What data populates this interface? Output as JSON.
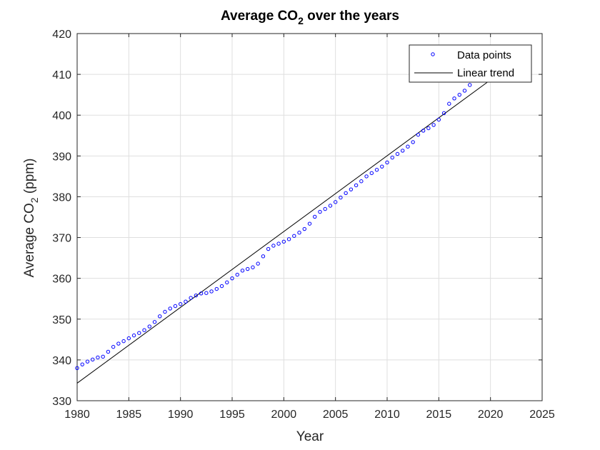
{
  "chart_data": {
    "type": "scatter",
    "title_main": "Average CO",
    "title_sub": "2",
    "title_rest": " over the years",
    "xlabel": "Year",
    "ylabel_main": "Average CO",
    "ylabel_sub": "2",
    "ylabel_rest": " (ppm)",
    "xlim": [
      1980,
      2025
    ],
    "ylim": [
      330,
      420
    ],
    "xticks": [
      1980,
      1985,
      1990,
      1995,
      2000,
      2005,
      2010,
      2015,
      2020,
      2025
    ],
    "yticks": [
      330,
      340,
      350,
      360,
      370,
      380,
      390,
      400,
      410,
      420
    ],
    "grid": true,
    "legend_position": "top-right",
    "series": [
      {
        "name": "Data points",
        "marker": "circle",
        "color": "#0000ff",
        "x": [
          1980.0,
          1980.5,
          1981.0,
          1981.5,
          1982.0,
          1982.5,
          1983.0,
          1983.5,
          1984.0,
          1984.5,
          1985.0,
          1985.5,
          1986.0,
          1986.5,
          1987.0,
          1987.5,
          1988.0,
          1988.5,
          1989.0,
          1989.5,
          1990.0,
          1990.5,
          1991.0,
          1991.5,
          1992.0,
          1992.5,
          1993.0,
          1993.5,
          1994.0,
          1994.5,
          1995.0,
          1995.5,
          1996.0,
          1996.5,
          1997.0,
          1997.5,
          1998.0,
          1998.5,
          1999.0,
          1999.5,
          2000.0,
          2000.5,
          2001.0,
          2001.5,
          2002.0,
          2002.5,
          2003.0,
          2003.5,
          2004.0,
          2004.5,
          2005.0,
          2005.5,
          2006.0,
          2006.5,
          2007.0,
          2007.5,
          2008.0,
          2008.5,
          2009.0,
          2009.5,
          2010.0,
          2010.5,
          2011.0,
          2011.5,
          2012.0,
          2012.5,
          2013.0,
          2013.5,
          2014.0,
          2014.5,
          2015.0,
          2015.5,
          2016.0,
          2016.5,
          2017.0,
          2017.5,
          2018.0,
          2018.5,
          2019.0
        ],
        "y": [
          338.0,
          338.9,
          339.6,
          340.1,
          340.6,
          340.8,
          342.0,
          343.2,
          344.0,
          344.6,
          345.3,
          346.0,
          346.6,
          347.3,
          348.2,
          349.3,
          350.7,
          351.8,
          352.6,
          353.2,
          353.7,
          354.3,
          355.2,
          355.8,
          356.3,
          356.4,
          356.8,
          357.4,
          358.1,
          359.0,
          360.0,
          360.9,
          361.9,
          362.3,
          362.7,
          363.6,
          365.4,
          367.2,
          368.0,
          368.5,
          369.0,
          369.6,
          370.4,
          371.2,
          372.1,
          373.4,
          375.1,
          376.3,
          377.0,
          377.8,
          378.7,
          379.8,
          380.9,
          381.8,
          382.8,
          383.8,
          385.0,
          385.8,
          386.6,
          387.4,
          388.4,
          389.6,
          390.5,
          391.3,
          392.3,
          393.4,
          395.2,
          396.2,
          396.8,
          397.6,
          398.9,
          400.5,
          402.8,
          404.1,
          405.0,
          406.0,
          407.4,
          408.7,
          409.9
        ]
      },
      {
        "name": "Linear trend",
        "color": "#000000",
        "x": [
          1980,
          2021
        ],
        "y": [
          334.3,
          410.5
        ]
      }
    ]
  }
}
